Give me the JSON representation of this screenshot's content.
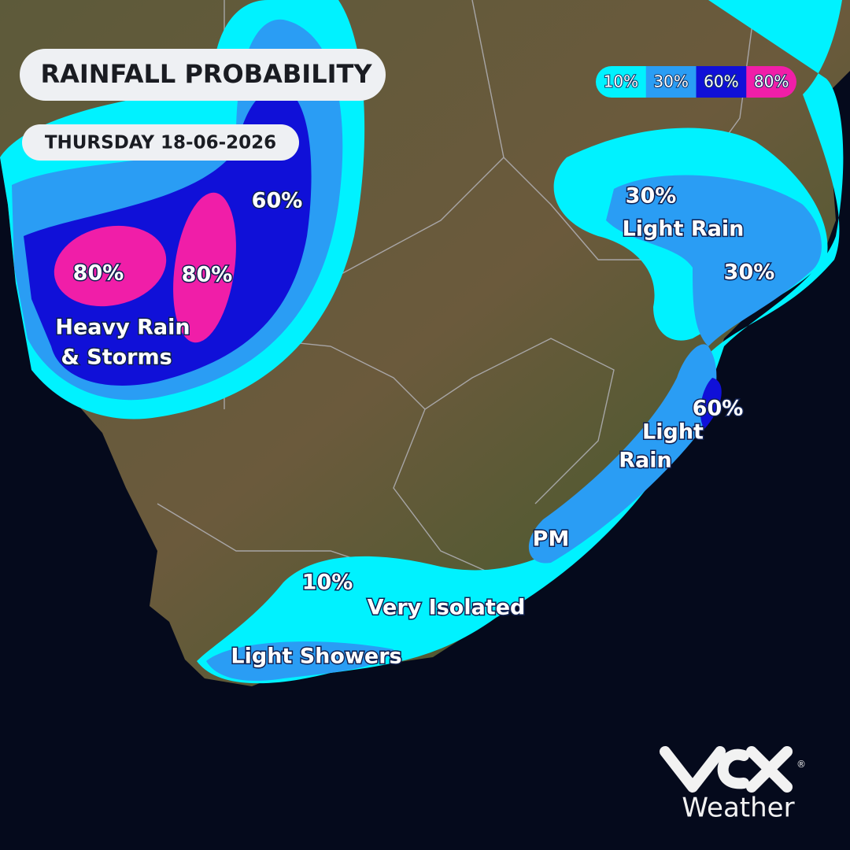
{
  "header": {
    "title": "RAINFALL PROBABILITY",
    "date": "THURSDAY 18-06-2026"
  },
  "legend": {
    "items": [
      {
        "label": "10%",
        "color": "#00f2ff"
      },
      {
        "label": "30%",
        "color": "#2a9df4"
      },
      {
        "label": "60%",
        "color": "#1010d8"
      },
      {
        "label": "80%",
        "color": "#f01ea8"
      }
    ]
  },
  "map_labels": [
    "60%",
    "80%",
    "80%",
    "Heavy Rain",
    "& Storms",
    "30%",
    "Light Rain",
    "30%",
    "60%",
    "Light",
    "Rain",
    "PM",
    "10%",
    "Very Isolated",
    "Light Showers"
  ],
  "logo": {
    "text": "Weather",
    "mark": "®"
  }
}
